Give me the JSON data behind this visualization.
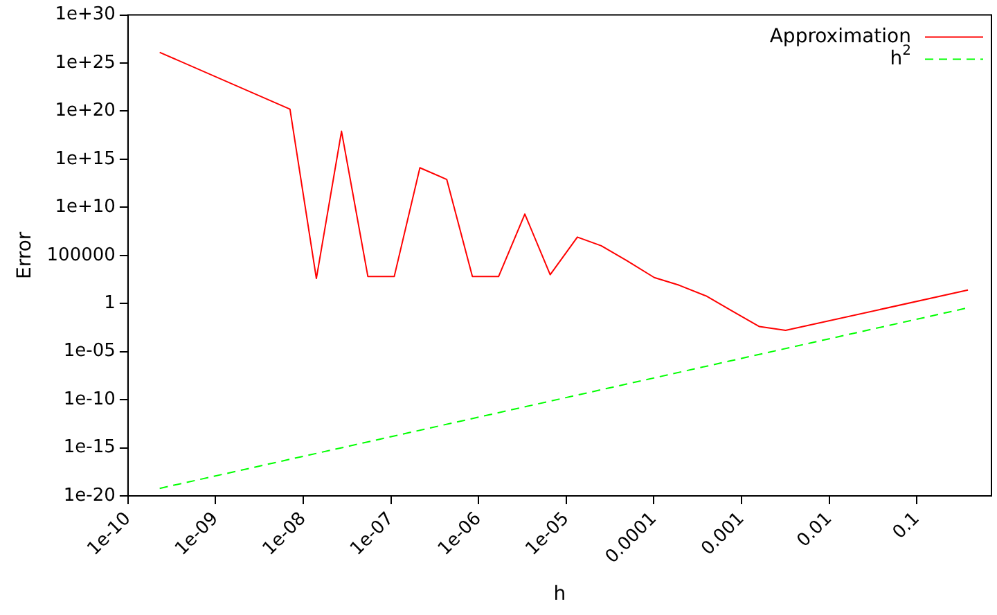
{
  "chart_data": {
    "type": "line",
    "xlabel": "h",
    "ylabel": "Error",
    "log": "xy",
    "grid": false,
    "legend": "top right",
    "marker": "none",
    "xlim": [
      1e-10,
      0.71
    ],
    "xticks": [
      1e-10,
      {
        "value": 1e-09,
        "label": "1e-09"
      },
      {
        "value": 1e-08,
        "label": "1e-08"
      },
      {
        "value": 1e-07,
        "label": "1e-07"
      },
      {
        "value": 1e-06,
        "label": "1e-06"
      },
      {
        "value": 1e-05,
        "label": "1e-05"
      },
      0.0001,
      0.001,
      0.01,
      0.1
    ],
    "ylim": [
      1e-20,
      1e+30
    ],
    "yticks": [
      {
        "value": 1e-20,
        "label": "1e-20"
      },
      {
        "value": 1e-15,
        "label": "1e-15"
      },
      {
        "value": 1e-10,
        "label": "1e-10"
      },
      {
        "value": 1e-05,
        "label": "1e-05"
      },
      1,
      100000,
      {
        "value": 10000000000.0,
        "label": "1e+10"
      },
      {
        "value": 1000000000000000.0,
        "label": "1e+15"
      },
      {
        "value": 1e+20,
        "label": "1e+20"
      },
      {
        "value": 1e+25,
        "label": "1e+25"
      },
      {
        "value": 1e+30,
        "label": "1e+30"
      }
    ],
    "series": [
      {
        "name": "Approximation",
        "color": "#ff0000",
        "line_style": "solid",
        "x": [
          2.3e-10,
          7.05e-09,
          1.41e-08,
          2.73e-08,
          5.46e-08,
          1.09e-07,
          2.14e-07,
          4.33e-07,
          8.5e-07,
          1.69e-06,
          3.37e-06,
          6.56e-06,
          1.34e-05,
          2.51e-05,
          4.88e-05,
          0.000101,
          0.000194,
          0.000396,
          0.000789,
          0.0016,
          0.00318,
          0.383
        ],
        "values": [
          1.3e+26,
          1.6e+20,
          400,
          8e+17,
          630,
          630,
          130000000000000.0,
          8000000000000.0,
          630,
          630,
          2000000000.0,
          1000,
          8000000.0,
          1000000.0,
          30000,
          500,
          80,
          6,
          0.16,
          0.004,
          0.0016,
          25
        ]
      },
      {
        "name": "h$^{2}$",
        "color": "#00ff00",
        "line_style": "dashed",
        "x": [
          2.3e-10,
          0.383
        ],
        "values": [
          6e-20,
          0.36
        ]
      }
    ]
  }
}
